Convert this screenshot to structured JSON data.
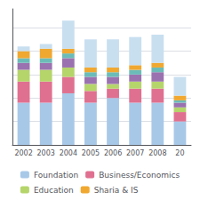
{
  "chart_data": {
    "type": "bar",
    "stacked": true,
    "categories": [
      "2002",
      "2003",
      "2004",
      "2005",
      "2006",
      "2007",
      "2008",
      "20"
    ],
    "series": [
      {
        "name": "Foundation",
        "color": "#a8c8e8",
        "values": [
          18,
          18,
          22,
          18,
          20,
          18,
          18,
          10
        ]
      },
      {
        "name": "Business/Economics",
        "color": "#e07090",
        "values": [
          9,
          9,
          7,
          5,
          4,
          6,
          6,
          4
        ]
      },
      {
        "name": "Education",
        "color": "#b5d56a",
        "values": [
          5,
          5,
          4,
          3,
          2,
          3,
          3,
          2
        ]
      },
      {
        "color": "#9b72b0",
        "values": [
          3,
          3,
          4,
          3,
          3,
          3,
          4,
          2
        ]
      },
      {
        "color": "#6bbcb8",
        "values": [
          2,
          2,
          2,
          2,
          2,
          2,
          2,
          1
        ]
      },
      {
        "name": "Sharia & IS",
        "color": "#f0a830",
        "values": [
          3,
          4,
          2,
          2,
          2,
          2,
          2,
          2
        ]
      },
      {
        "color": "#c8dff0",
        "values": [
          2,
          2,
          12,
          12,
          12,
          12,
          12,
          8
        ]
      }
    ],
    "ylim": [
      0,
      58
    ],
    "yticks": [
      0,
      10,
      20,
      30,
      40,
      50
    ],
    "grid": true,
    "tick_labels": "x",
    "legend": "bottom"
  }
}
